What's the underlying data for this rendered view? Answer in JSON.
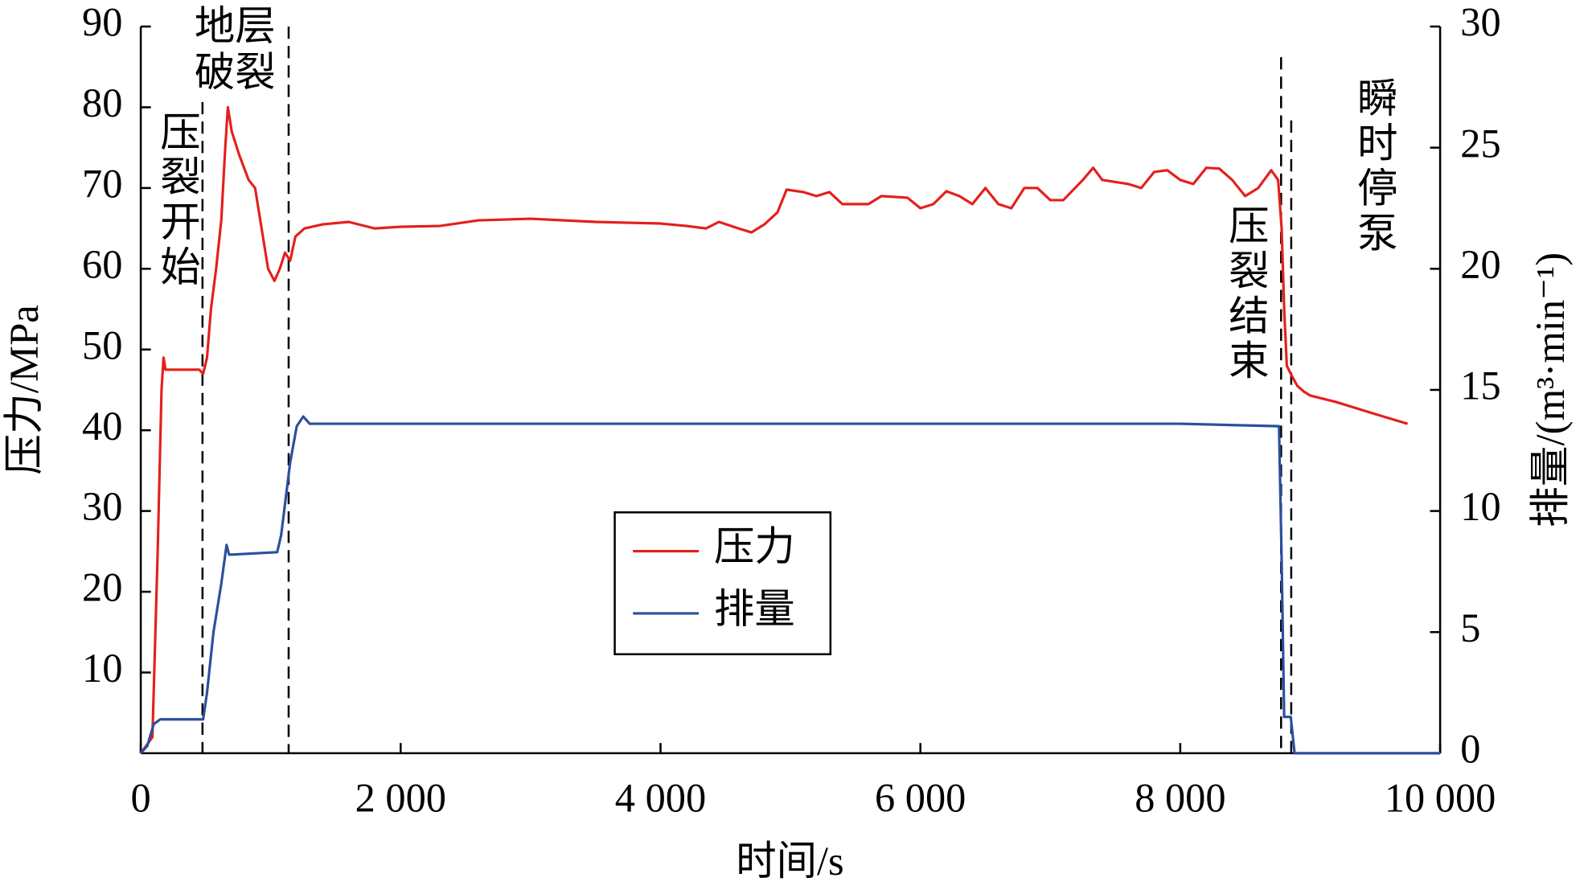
{
  "chart_data": {
    "type": "line",
    "xlabel": "时间/s",
    "ylabel": "压力/MPa",
    "y2label": "排量/(m³·min⁻¹)",
    "xlim": [
      0,
      10000
    ],
    "xticks": [
      0,
      {
        "value": 2000,
        "label": "2 000"
      },
      {
        "value": 4000,
        "label": "4 000"
      },
      {
        "value": 6000,
        "label": "6 000"
      },
      {
        "value": 8000,
        "label": "8 000"
      },
      {
        "value": 10000,
        "label": "10 000"
      }
    ],
    "ylim": [
      0,
      90
    ],
    "yticks": [
      10,
      20,
      30,
      40,
      50,
      60,
      70,
      80,
      90
    ],
    "y2lim": [
      0,
      30
    ],
    "y2ticks": [
      0,
      5,
      10,
      15,
      20,
      25,
      30
    ],
    "legend": "center",
    "vlines": [
      475,
      1138,
      8776,
      8854
    ],
    "annotations": [
      {
        "lines": [
          "压裂开始"
        ]
      },
      {
        "lines": [
          "地层",
          "破裂"
        ]
      },
      {
        "lines": [
          "压裂结束"
        ]
      },
      {
        "lines": [
          "瞬时停泵"
        ]
      }
    ],
    "series": [
      {
        "name": "压力",
        "color": "#e3201b",
        "x": [
          0,
          90,
          130,
          160,
          175,
          190,
          300,
          450,
          480,
          510,
          540,
          580,
          620,
          650,
          670,
          700,
          760,
          830,
          880,
          930,
          980,
          1029,
          1070,
          1110,
          1150,
          1190,
          1260,
          1400,
          1600,
          1800,
          2000,
          2300,
          2600,
          3000,
          3500,
          4000,
          4200,
          4350,
          4450,
          4600,
          4700,
          4800,
          4900,
          4970,
          5100,
          5200,
          5300,
          5400,
          5600,
          5700,
          5900,
          6000,
          6100,
          6200,
          6300,
          6400,
          6500,
          6600,
          6700,
          6800,
          6900,
          7000,
          7100,
          7250,
          7330,
          7400,
          7600,
          7700,
          7800,
          7900,
          8000,
          8100,
          8200,
          8300,
          8400,
          8500,
          8600,
          8700,
          8753,
          8780,
          8800,
          8820,
          8850,
          8900,
          8950,
          9000,
          9200,
          9500,
          9750
        ],
        "values": [
          0,
          2,
          25,
          45,
          49,
          47.5,
          47.5,
          47.5,
          47,
          49,
          55,
          60,
          66,
          75,
          80,
          77,
          74,
          71,
          70,
          65,
          60,
          58.5,
          60,
          62,
          61,
          64,
          65,
          65.5,
          65.8,
          65,
          65.2,
          65.3,
          66,
          66.2,
          65.8,
          65.6,
          65.3,
          65,
          65.8,
          65,
          64.5,
          65.5,
          67,
          69.8,
          69.5,
          69,
          69.5,
          68,
          68,
          69,
          68.8,
          67.5,
          68,
          69.6,
          69,
          68,
          70,
          68,
          67.5,
          70,
          70,
          68.5,
          68.5,
          71,
          72.5,
          71,
          70.5,
          70,
          72,
          72.2,
          71,
          70.5,
          72.5,
          72.4,
          71,
          69,
          70,
          72.2,
          71,
          65,
          55,
          48,
          47,
          45.5,
          44.8,
          44.3,
          43.5,
          42,
          40.8
        ]
      },
      {
        "name": "排量",
        "color": "#2b4f9e",
        "axis": "y2",
        "x": [
          0,
          50,
          100,
          150,
          480,
          510,
          560,
          620,
          660,
          680,
          700,
          1050,
          1080,
          1150,
          1200,
          1250,
          1300,
          4000,
          8000,
          8760,
          8780,
          8800,
          8850,
          8880,
          10000
        ],
        "values": [
          0,
          0.3,
          1.2,
          1.4,
          1.4,
          2.5,
          5,
          7,
          8.6,
          8.2,
          8.2,
          8.3,
          9,
          12,
          13.5,
          13.9,
          13.6,
          13.6,
          13.6,
          13.5,
          8,
          1.5,
          1.5,
          0,
          0
        ]
      }
    ]
  }
}
